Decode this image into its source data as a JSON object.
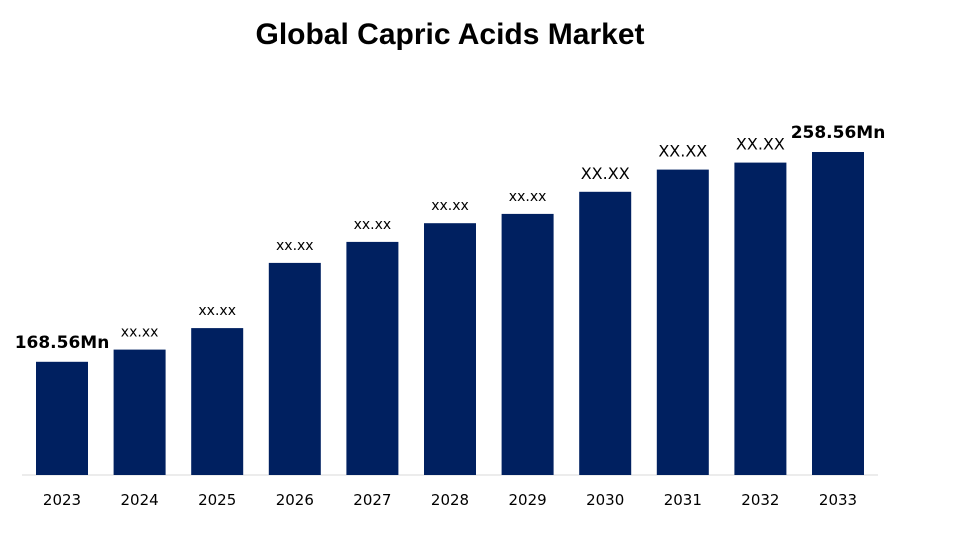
{
  "chart_data": {
    "type": "bar",
    "title": "Global Capric Acids Market",
    "categories": [
      "2023",
      "2024",
      "2025",
      "2026",
      "2027",
      "2028",
      "2029",
      "2030",
      "2031",
      "2032",
      "2033"
    ],
    "values": [
      168.56,
      173.8,
      183.0,
      211.0,
      220.0,
      228.0,
      232.0,
      241.5,
      251.0,
      254.0,
      258.56
    ],
    "data_labels": [
      "168.56Mn",
      "xx.xx",
      "xx.xx",
      "xx.xx",
      "xx.xx",
      "xx.xx",
      "xx.xx",
      "XX.XX",
      "XX.XX",
      "XX.XX",
      "258.56Mn"
    ],
    "ylim": [
      120,
      260
    ],
    "grid": false,
    "bar_color": "#002060"
  }
}
